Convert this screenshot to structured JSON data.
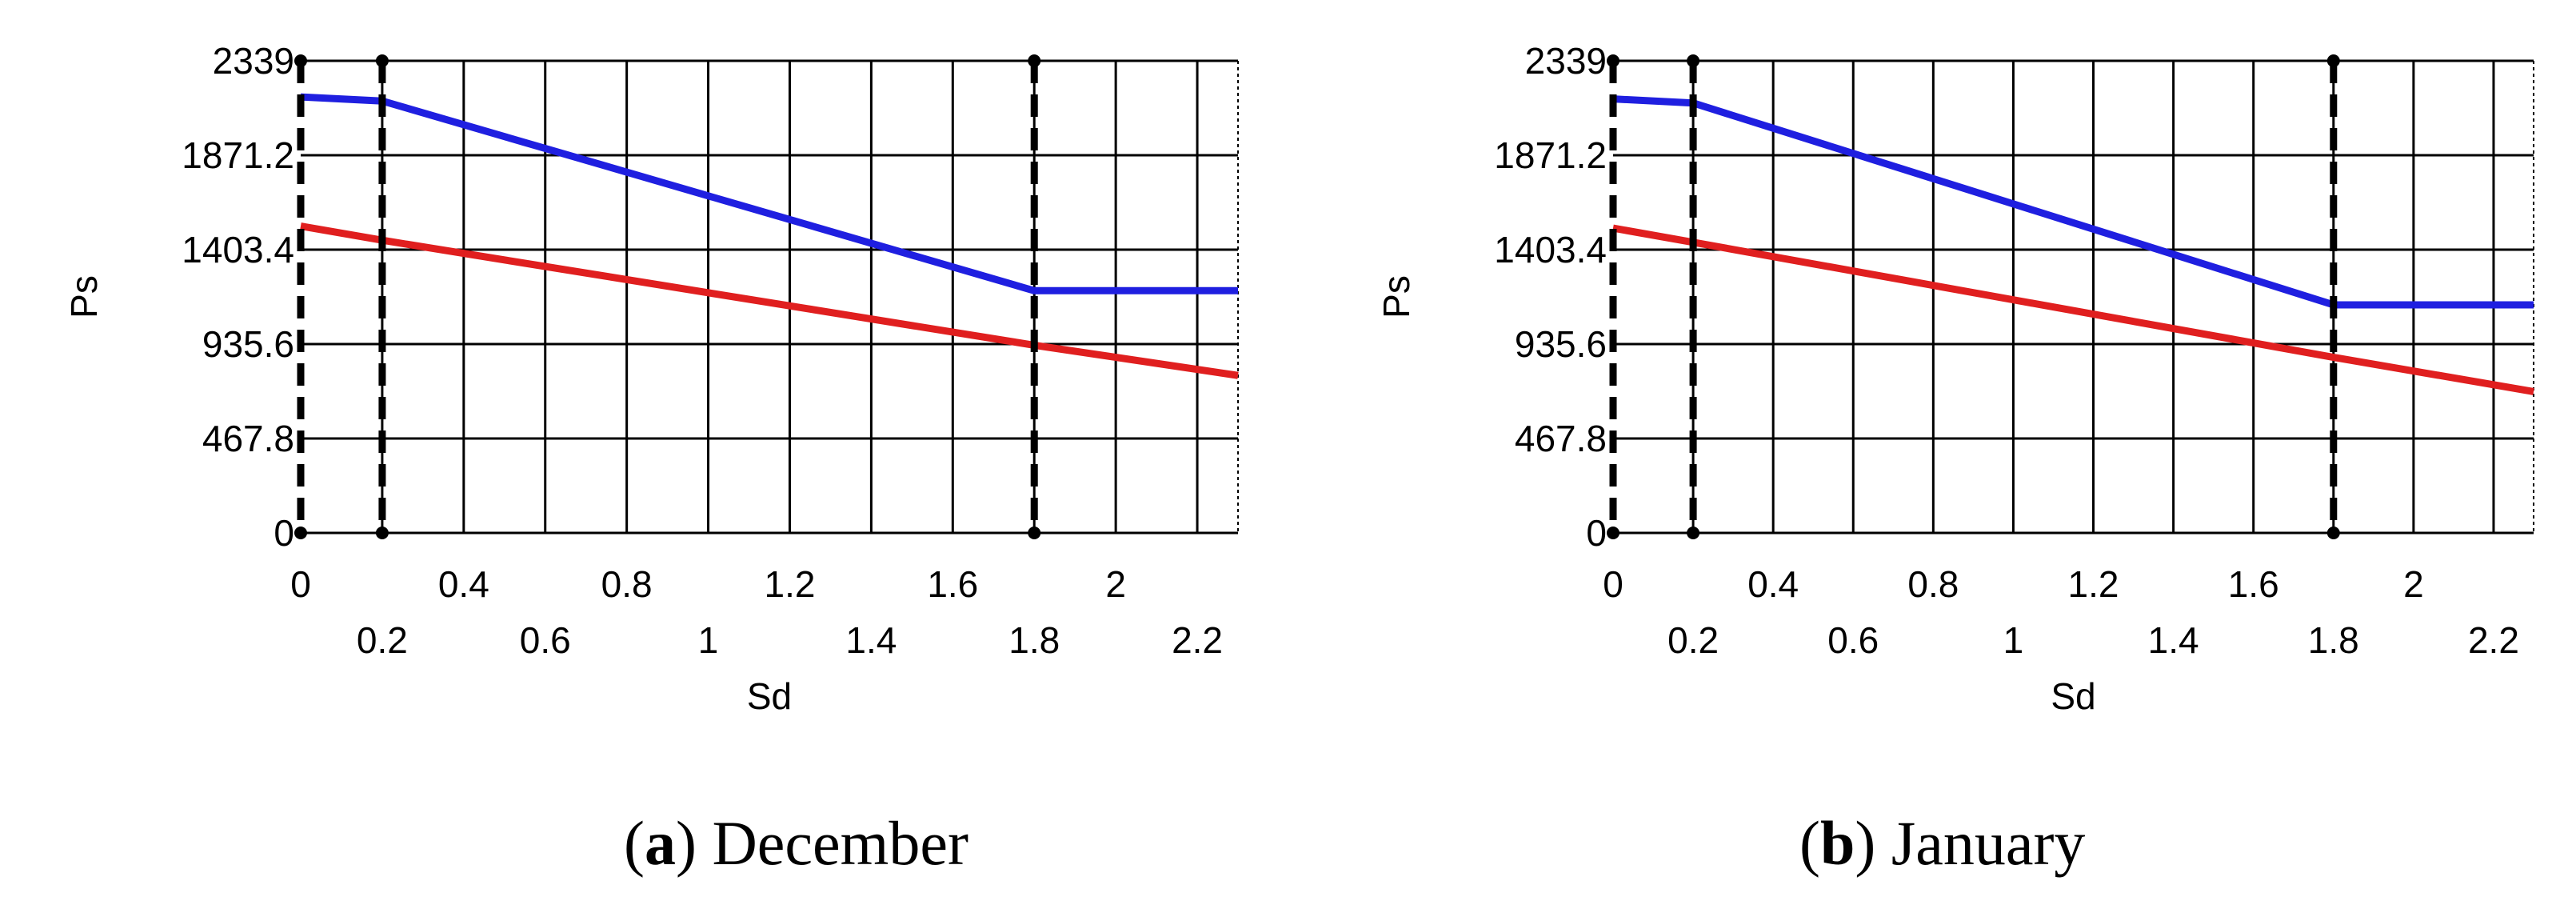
{
  "chart_data": [
    {
      "type": "line",
      "caption_letter": "a",
      "caption_text": "December",
      "xlabel": "Sd",
      "ylabel": "Ps",
      "xlim": [
        0,
        2.3
      ],
      "ylim": [
        0,
        2339
      ],
      "x_ticks_top": [
        "0",
        "0.4",
        "0.8",
        "1.2",
        "1.6",
        "2"
      ],
      "x_ticks_bottom": [
        "0.2",
        "0.6",
        "1",
        "1.4",
        "1.8",
        "2.2"
      ],
      "y_ticks": [
        "0",
        "467.8",
        "935.6",
        "1403.4",
        "1871.2",
        "2339"
      ],
      "grid": true,
      "vertical_markers": [
        0,
        0.2,
        1.8
      ],
      "colors": {
        "series_1": "#1f1fe0",
        "series_2": "#e01f1f"
      },
      "series": [
        {
          "values": [
            [
              0,
              2160
            ],
            [
              0.2,
              2140
            ],
            [
              1.8,
              1200
            ],
            [
              2.3,
              1200
            ]
          ]
        },
        {
          "values": [
            [
              0,
              1520
            ],
            [
              0.2,
              1450
            ],
            [
              1.8,
              930
            ],
            [
              2.3,
              780
            ]
          ]
        }
      ]
    },
    {
      "type": "line",
      "caption_letter": "b",
      "caption_text": "January",
      "xlabel": "Sd",
      "ylabel": "Ps",
      "xlim": [
        0,
        2.3
      ],
      "ylim": [
        0,
        2339
      ],
      "x_ticks_top": [
        "0",
        "0.4",
        "0.8",
        "1.2",
        "1.6",
        "2"
      ],
      "x_ticks_bottom": [
        "0.2",
        "0.6",
        "1",
        "1.4",
        "1.8",
        "2.2"
      ],
      "y_ticks": [
        "0",
        "467.8",
        "935.6",
        "1403.4",
        "1871.2",
        "2339"
      ],
      "grid": true,
      "vertical_markers": [
        0,
        0.2,
        1.8
      ],
      "colors": {
        "series_1": "#1f1fe0",
        "series_2": "#e01f1f"
      },
      "series": [
        {
          "values": [
            [
              0,
              2150
            ],
            [
              0.2,
              2130
            ],
            [
              1.8,
              1130
            ],
            [
              2.3,
              1130
            ]
          ]
        },
        {
          "values": [
            [
              0,
              1510
            ],
            [
              0.2,
              1440
            ],
            [
              1.8,
              870
            ],
            [
              2.3,
              700
            ]
          ]
        }
      ]
    }
  ]
}
